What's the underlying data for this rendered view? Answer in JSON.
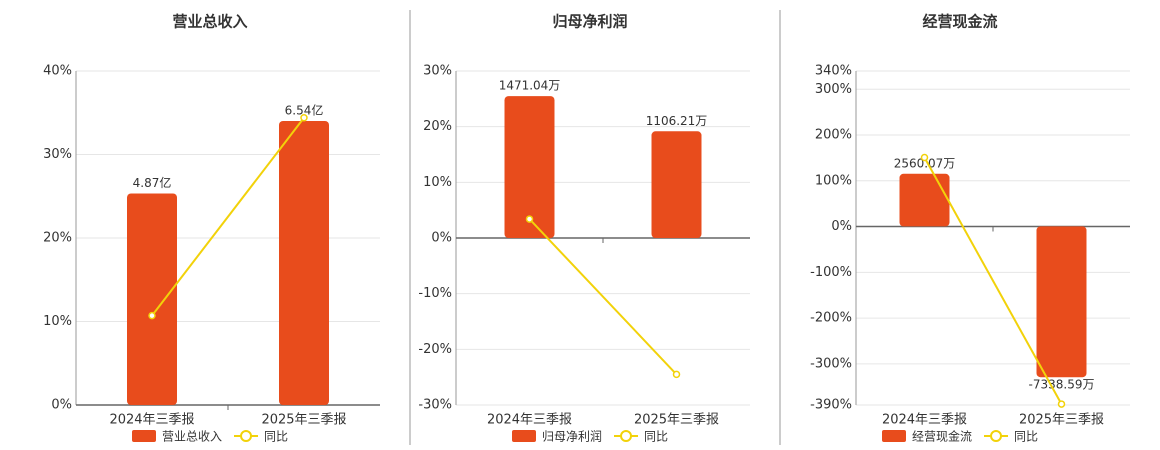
{
  "chart_data": [
    {
      "type": "bar",
      "title": "营业总收入",
      "categories": [
        "2024年三季报",
        "2025年三季报"
      ],
      "series": [
        {
          "name": "营业总收入",
          "color": "#e84c1c",
          "axis": "y2",
          "values": [
            4.87,
            6.54
          ],
          "value_labels": [
            "4.87亿",
            "6.54亿"
          ]
        },
        {
          "name": "同比",
          "type": "line",
          "color": "#f2d20a",
          "values": [
            10.7,
            34.4
          ]
        }
      ],
      "ylim": [
        0,
        40
      ],
      "yticks": [
        {
          "value": 0,
          "label": "0%"
        },
        {
          "value": 10,
          "label": "10%"
        },
        {
          "value": 20,
          "label": "20%"
        },
        {
          "value": 30,
          "label": "30%"
        },
        {
          "value": 40,
          "label": "40%"
        }
      ],
      "y2lim": [
        0,
        7.69
      ],
      "grid": true
    },
    {
      "type": "bar",
      "title": "归母净利润",
      "categories": [
        "2024年三季报",
        "2025年三季报"
      ],
      "series": [
        {
          "name": "归母净利润",
          "color": "#e84c1c",
          "axis": "y2",
          "values": [
            1471.04,
            1106.21
          ],
          "value_labels": [
            "1471.04万",
            "1106.21万"
          ]
        },
        {
          "name": "同比",
          "type": "line",
          "color": "#f2d20a",
          "values": [
            3.4,
            -24.5
          ]
        }
      ],
      "ylim": [
        -30,
        30
      ],
      "yticks": [
        {
          "value": -30,
          "label": "-30%"
        },
        {
          "value": -20,
          "label": "-20%"
        },
        {
          "value": -10,
          "label": "-10%"
        },
        {
          "value": 0,
          "label": "0%"
        },
        {
          "value": 10,
          "label": "10%"
        },
        {
          "value": 20,
          "label": "20%"
        },
        {
          "value": 30,
          "label": "30%"
        }
      ],
      "y2lim": [
        -1731,
        1731
      ],
      "grid": true
    },
    {
      "type": "bar",
      "title": "经营现金流",
      "categories": [
        "2024年三季报",
        "2025年三季报"
      ],
      "series": [
        {
          "name": "经营现金流",
          "color": "#e84c1c",
          "axis": "y2",
          "values": [
            2560.07,
            -7338.59
          ],
          "value_labels": [
            "2560.07万",
            "-7338.59万"
          ]
        },
        {
          "name": "同比",
          "type": "line",
          "color": "#f2d20a",
          "values": [
            151,
            -388
          ]
        }
      ],
      "ylim": [
        -390,
        340
      ],
      "yticks": [
        {
          "value": -390,
          "label": "-390%"
        },
        {
          "value": -300,
          "label": "-300%"
        },
        {
          "value": -200,
          "label": "-200%"
        },
        {
          "value": -100,
          "label": "-100%"
        },
        {
          "value": 0,
          "label": "0%"
        },
        {
          "value": 100,
          "label": "100%"
        },
        {
          "value": 200,
          "label": "200%"
        },
        {
          "value": 300,
          "label": "300%"
        },
        {
          "value": 340,
          "label": "340%"
        }
      ],
      "y2lim": [
        -8690,
        7560
      ],
      "grid": true
    }
  ]
}
